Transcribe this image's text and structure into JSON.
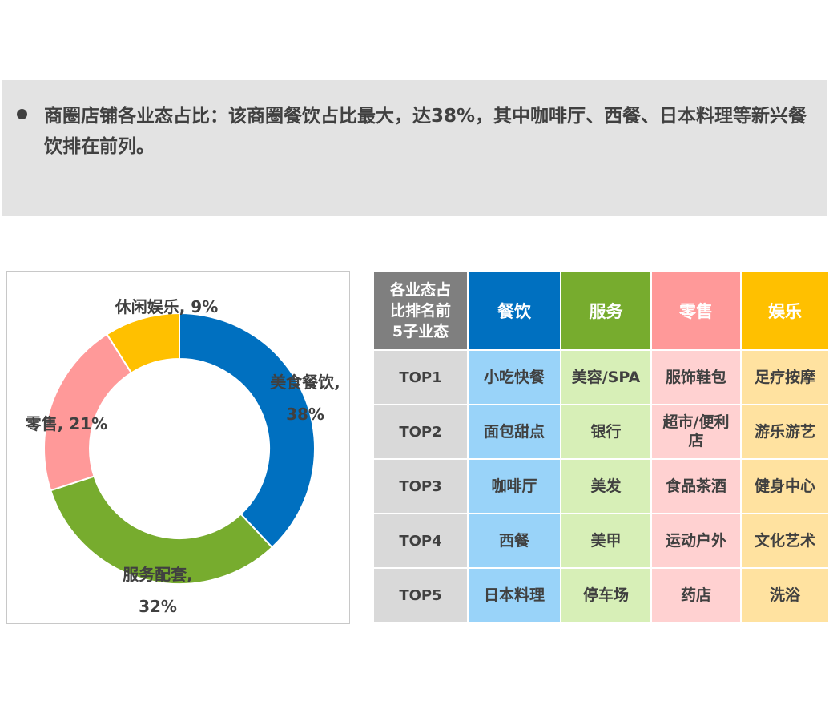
{
  "summary": {
    "text": "商圈店铺各业态占比：该商圈餐饮占比最大，达38%，其中咖啡厅、西餐、日本料理等新兴餐饮排在前列。"
  },
  "chart_data": {
    "type": "pie",
    "donut": true,
    "slices": [
      {
        "name": "美食餐饮",
        "value": 38,
        "label_line1": "美食餐饮,",
        "label_line2": "38%",
        "color": "#0070c0"
      },
      {
        "name": "服务配套",
        "value": 32,
        "label_line1": "服务配套,",
        "label_line2": "32%",
        "color": "#77ac2e"
      },
      {
        "name": "零售",
        "value": 21,
        "label_line1": "零售, 21%",
        "label_line2": "",
        "color": "#ff9999"
      },
      {
        "name": "休闲娱乐",
        "value": 9,
        "label_line1": "休闲娱乐, 9%",
        "label_line2": "",
        "color": "#ffc000"
      }
    ]
  },
  "table": {
    "corner": [
      "各业态占",
      "比排名前",
      "5子业态"
    ],
    "headers": [
      "餐饮",
      "服务",
      "零售",
      "娱乐"
    ],
    "rows": [
      {
        "rank": "TOP1",
        "cells": [
          "小吃快餐",
          "美容/SPA",
          "服饰鞋包",
          "足疗按摩"
        ]
      },
      {
        "rank": "TOP2",
        "cells": [
          "面包甜点",
          "银行",
          "超市/便利店",
          "游乐游艺"
        ]
      },
      {
        "rank": "TOP3",
        "cells": [
          "咖啡厅",
          "美发",
          "食品茶酒",
          "健身中心"
        ]
      },
      {
        "rank": "TOP4",
        "cells": [
          "西餐",
          "美甲",
          "运动户外",
          "文化艺术"
        ]
      },
      {
        "rank": "TOP5",
        "cells": [
          "日本料理",
          "停车场",
          "药店",
          "洗浴"
        ]
      }
    ]
  }
}
